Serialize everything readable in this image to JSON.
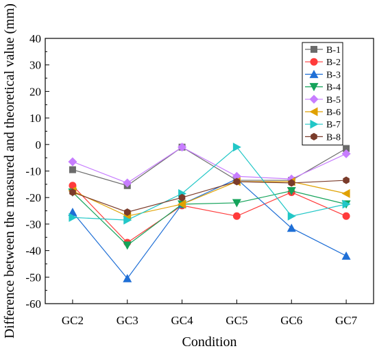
{
  "chart_data": {
    "type": "line",
    "xlabel": "Condition",
    "ylabel": "Difference between the measured and theoretical value (mm)",
    "ylim": [
      -60,
      40
    ],
    "y_ticks": [
      40,
      30,
      20,
      10,
      0,
      -10,
      -20,
      -30,
      -40,
      -50,
      -60
    ],
    "categories": [
      "GC2",
      "GC3",
      "GC4",
      "GC5",
      "GC6",
      "GC7"
    ],
    "legend_position": "top-right",
    "grid": false,
    "series": [
      {
        "name": "B-1",
        "color": "#6b6b6b",
        "marker": "square",
        "values": [
          -9.5,
          -15.5,
          -1.0,
          -13.5,
          -13.5,
          -1.5
        ]
      },
      {
        "name": "B-2",
        "color": "#ff3b3b",
        "marker": "circle",
        "values": [
          -15.5,
          -37.0,
          -23.0,
          -27.0,
          -18.0,
          -27.0
        ]
      },
      {
        "name": "B-3",
        "color": "#1f6fd6",
        "marker": "triangle-up",
        "values": [
          -25.5,
          -50.5,
          -22.5,
          -13.0,
          -31.5,
          -42.0
        ]
      },
      {
        "name": "B-4",
        "color": "#14a35a",
        "marker": "triangle-down",
        "values": [
          -18.0,
          -38.0,
          -22.5,
          -22.0,
          -17.5,
          -22.5
        ]
      },
      {
        "name": "B-5",
        "color": "#c77dff",
        "marker": "diamond",
        "values": [
          -6.5,
          -14.5,
          -1.0,
          -12.0,
          -13.0,
          -3.5
        ]
      },
      {
        "name": "B-6",
        "color": "#e0a100",
        "marker": "triangle-left",
        "values": [
          -17.5,
          -27.0,
          -22.5,
          -14.0,
          -14.0,
          -18.5
        ]
      },
      {
        "name": "B-7",
        "color": "#22c7c7",
        "marker": "triangle-right",
        "values": [
          -27.5,
          -28.5,
          -18.5,
          -1.0,
          -27.0,
          -22.5
        ]
      },
      {
        "name": "B-8",
        "color": "#7a3b2a",
        "marker": "hexagon",
        "values": [
          -18.0,
          -25.5,
          -20.0,
          -14.0,
          -14.5,
          -13.5
        ]
      }
    ]
  }
}
